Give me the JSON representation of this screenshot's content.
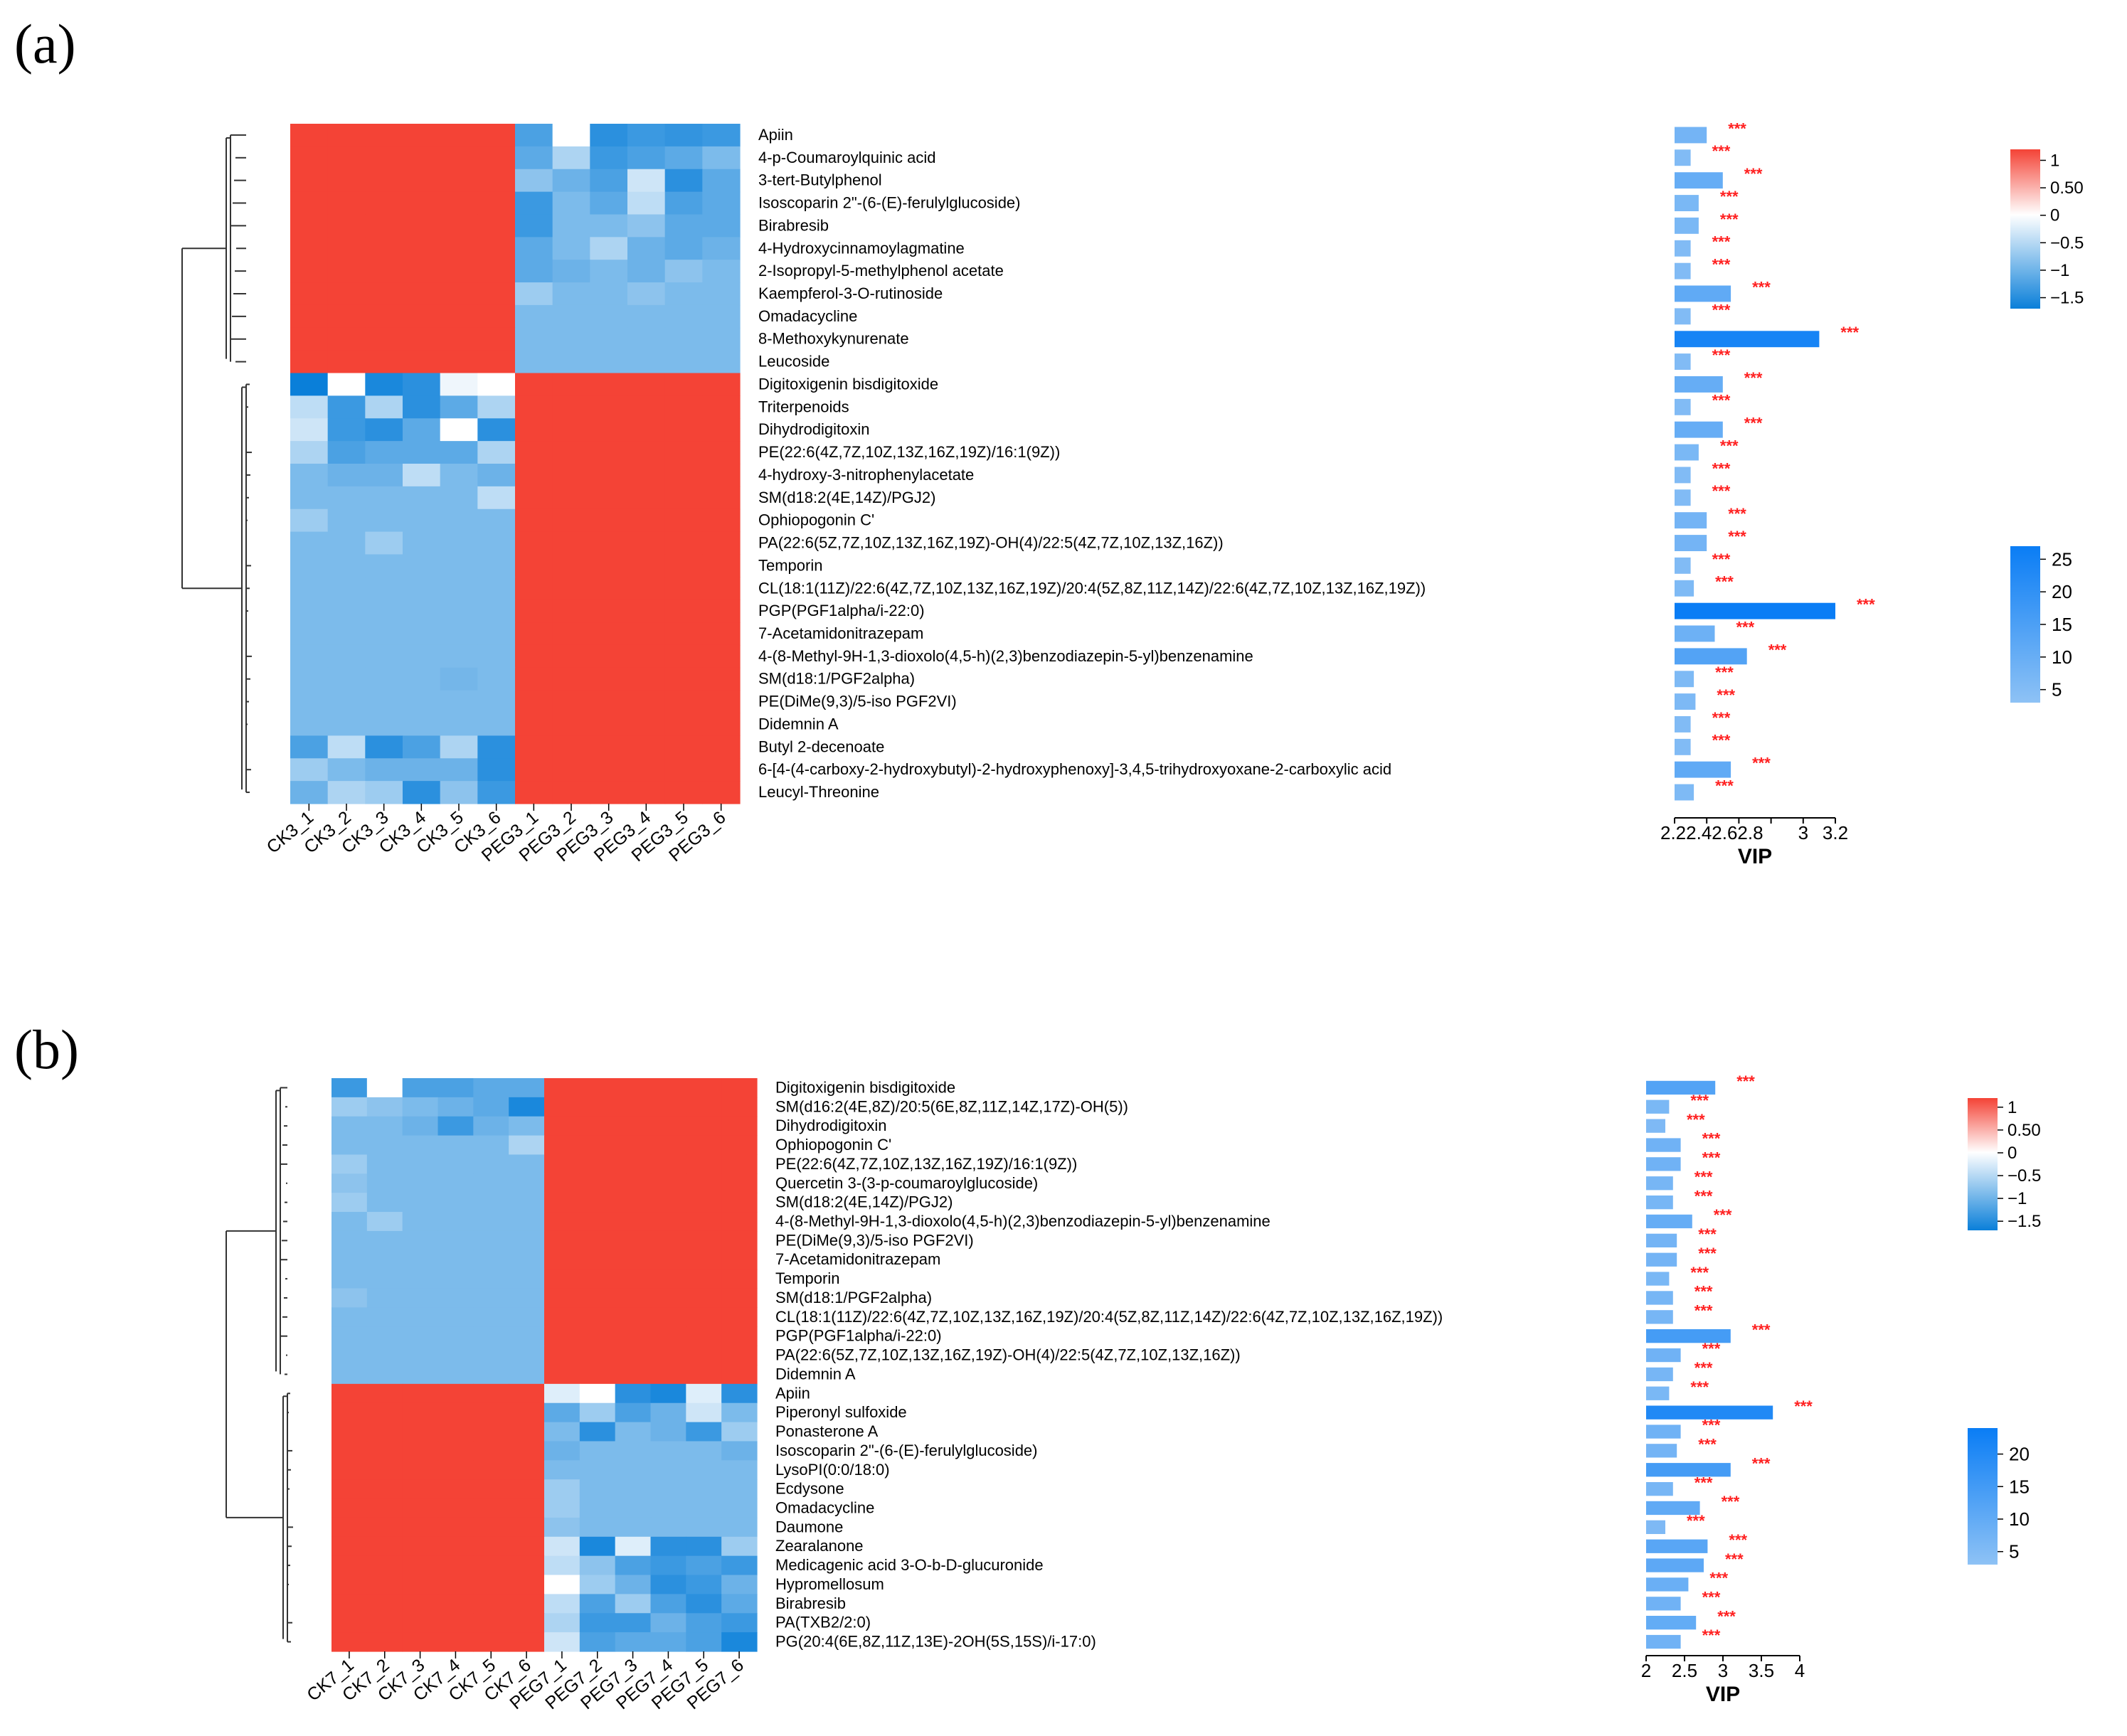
{
  "colors": {
    "heat_high": "#f44336",
    "heat_mid": "#ffffff",
    "heat_low": "#0a7fd9",
    "vip_high": "#0a7df5",
    "vip_low": "#8ec2f5",
    "significance": "#ff2020"
  },
  "chart_data": [
    {
      "type": "heatmap",
      "panel_label": "(a)",
      "samples": [
        "CK3_1",
        "CK3_2",
        "CK3_3",
        "CK3_4",
        "CK3_5",
        "CK3_6",
        "PEG3_1",
        "PEG3_2",
        "PEG3_3",
        "PEG3_4",
        "PEG3_5",
        "PEG3_6"
      ],
      "metabolites": [
        "Apiin",
        "4-p-Coumaroylquinic acid",
        "3-tert-Butylphenol",
        "Isoscoparin 2\"-(6-(E)-ferulylglucoside)",
        "Birabresib",
        "4-Hydroxycinnamoylagmatine",
        "2-Isopropyl-5-methylphenol acetate",
        "Kaempferol-3-O-rutinoside",
        "Omadacycline",
        "8-Methoxykynurenate",
        "Leucoside",
        "Digitoxigenin bisdigitoxide",
        "Triterpenoids",
        "Dihydrodigitoxin",
        "PE(22:6(4Z,7Z,10Z,13Z,16Z,19Z)/16:1(9Z))",
        "4-hydroxy-3-nitrophenylacetate",
        "SM(d18:2(4E,14Z)/PGJ2)",
        "Ophiopogonin C'",
        "PA(22:6(5Z,7Z,10Z,13Z,16Z,19Z)-OH(4)/22:5(4Z,7Z,10Z,13Z,16Z))",
        "Temporin",
        "CL(18:1(11Z)/22:6(4Z,7Z,10Z,13Z,16Z,19Z)/20:4(5Z,8Z,11Z,14Z)/22:6(4Z,7Z,10Z,13Z,16Z,19Z))",
        "PGP(PGF1alpha/i-22:0)",
        "7-Acetamidonitrazepam",
        "4-(8-Methyl-9H-1,3-dioxolo(4,5-h)(2,3)benzodiazepin-5-yl)benzenamine",
        "SM(d18:1/PGF2alpha)",
        "PE(DiMe(9,3)/5-iso PGF2VI)",
        "Didemnin A",
        "Butyl 2-decenoate",
        "6-[4-(4-carboxy-2-hydroxybutyl)-2-hydroxyphenoxy]-3,4,5-trihydroxyoxane-2-carboxylic acid",
        "Leucyl-Threonine"
      ],
      "values": [
        [
          0.95,
          0.9,
          0.9,
          0.85,
          0.9,
          0.88,
          -1.1,
          0.0,
          -1.3,
          -1.2,
          -1.25,
          -1.2
        ],
        [
          0.9,
          0.88,
          0.9,
          0.88,
          0.9,
          0.88,
          -1.0,
          -0.5,
          -1.2,
          -1.1,
          -1.0,
          -0.8
        ],
        [
          0.92,
          0.9,
          0.9,
          0.88,
          0.9,
          0.9,
          -0.7,
          -0.9,
          -1.1,
          -0.3,
          -1.3,
          -1.0
        ],
        [
          0.9,
          0.9,
          0.9,
          0.9,
          0.9,
          0.9,
          -1.2,
          -0.8,
          -1.0,
          -0.4,
          -1.1,
          -1.0
        ],
        [
          0.9,
          0.9,
          0.9,
          0.9,
          0.9,
          0.9,
          -1.2,
          -0.8,
          -0.8,
          -0.7,
          -1.0,
          -1.0
        ],
        [
          0.9,
          0.9,
          0.9,
          0.9,
          0.9,
          0.9,
          -1.0,
          -0.8,
          -0.5,
          -0.9,
          -1.0,
          -0.9
        ],
        [
          0.9,
          0.9,
          0.9,
          0.9,
          0.9,
          0.9,
          -1.0,
          -0.9,
          -0.8,
          -0.9,
          -0.7,
          -0.8
        ],
        [
          0.9,
          0.9,
          0.9,
          0.9,
          0.9,
          0.9,
          -0.6,
          -0.8,
          -0.8,
          -0.7,
          -0.8,
          -0.8
        ],
        [
          0.9,
          0.9,
          0.9,
          0.9,
          0.9,
          0.9,
          -0.8,
          -0.8,
          -0.8,
          -0.8,
          -0.8,
          -0.8
        ],
        [
          0.9,
          0.9,
          0.9,
          0.9,
          0.9,
          0.9,
          -0.8,
          -0.8,
          -0.8,
          -0.8,
          -0.8,
          -0.8
        ],
        [
          0.9,
          0.9,
          0.9,
          0.9,
          0.9,
          0.9,
          -0.8,
          -0.8,
          -0.8,
          -0.8,
          -0.8,
          -0.8
        ],
        [
          -1.5,
          0.0,
          -1.4,
          -1.3,
          -0.1,
          0.0,
          0.9,
          0.9,
          0.9,
          0.9,
          0.9,
          0.9
        ],
        [
          -0.4,
          -1.2,
          -0.5,
          -1.3,
          -1.0,
          -0.5,
          0.9,
          0.9,
          0.95,
          0.9,
          0.95,
          0.9
        ],
        [
          -0.3,
          -1.2,
          -1.3,
          -1.0,
          0.0,
          -1.3,
          0.9,
          0.9,
          0.9,
          0.9,
          0.9,
          0.9
        ],
        [
          -0.5,
          -1.1,
          -1.0,
          -1.0,
          -1.0,
          -0.5,
          0.9,
          0.9,
          0.9,
          0.9,
          0.95,
          0.9
        ],
        [
          -0.8,
          -0.9,
          -0.9,
          -0.4,
          -0.8,
          -0.9,
          0.9,
          0.9,
          0.9,
          0.9,
          0.95,
          0.9
        ],
        [
          -0.8,
          -0.8,
          -0.8,
          -0.8,
          -0.8,
          -0.4,
          0.9,
          0.9,
          0.9,
          0.9,
          0.9,
          0.9
        ],
        [
          -0.6,
          -0.8,
          -0.8,
          -0.8,
          -0.8,
          -0.8,
          0.9,
          0.9,
          0.9,
          0.9,
          0.9,
          0.9
        ],
        [
          -0.8,
          -0.8,
          -0.6,
          -0.8,
          -0.8,
          -0.8,
          0.9,
          0.9,
          0.9,
          0.9,
          0.9,
          0.9
        ],
        [
          -0.8,
          -0.8,
          -0.8,
          -0.8,
          -0.8,
          -0.8,
          0.9,
          0.9,
          0.9,
          0.9,
          0.9,
          0.9
        ],
        [
          -0.8,
          -0.8,
          -0.8,
          -0.8,
          -0.8,
          -0.8,
          0.9,
          0.9,
          0.9,
          0.9,
          0.9,
          0.9
        ],
        [
          -0.8,
          -0.8,
          -0.8,
          -0.8,
          -0.8,
          -0.8,
          0.9,
          0.9,
          0.9,
          0.9,
          0.9,
          0.9
        ],
        [
          -0.8,
          -0.8,
          -0.8,
          -0.8,
          -0.8,
          -0.8,
          0.9,
          0.9,
          0.9,
          0.9,
          0.9,
          0.9
        ],
        [
          -0.8,
          -0.8,
          -0.8,
          -0.8,
          -0.8,
          -0.8,
          0.9,
          0.9,
          0.9,
          0.9,
          0.9,
          0.9
        ],
        [
          -0.8,
          -0.8,
          -0.8,
          -0.8,
          -0.85,
          -0.8,
          0.9,
          0.9,
          0.9,
          0.9,
          0.9,
          0.9
        ],
        [
          -0.8,
          -0.8,
          -0.8,
          -0.8,
          -0.8,
          -0.8,
          0.9,
          0.9,
          0.9,
          0.9,
          0.9,
          0.9
        ],
        [
          -0.8,
          -0.8,
          -0.8,
          -0.8,
          -0.8,
          -0.8,
          0.9,
          0.9,
          0.9,
          0.9,
          0.9,
          0.9
        ],
        [
          -1.1,
          -0.4,
          -1.3,
          -1.1,
          -0.5,
          -1.3,
          0.9,
          0.9,
          0.9,
          0.9,
          0.9,
          0.9
        ],
        [
          -0.6,
          -0.8,
          -0.9,
          -0.9,
          -0.9,
          -1.3,
          0.9,
          0.9,
          0.9,
          0.9,
          0.9,
          0.9
        ],
        [
          -0.9,
          -0.5,
          -0.6,
          -1.3,
          -0.7,
          -1.2,
          0.9,
          0.9,
          0.9,
          0.9,
          0.9,
          0.9
        ]
      ],
      "vip": [
        2.4,
        2.3,
        2.5,
        2.35,
        2.35,
        2.3,
        2.3,
        2.55,
        2.3,
        3.1,
        2.3,
        2.5,
        2.3,
        2.5,
        2.35,
        2.3,
        2.3,
        2.4,
        2.4,
        2.3,
        2.32,
        3.2,
        2.45,
        2.65,
        2.32,
        2.33,
        2.3,
        2.3,
        2.55,
        2.32
      ],
      "significance": [
        "***",
        "***",
        "***",
        "***",
        "***",
        "***",
        "***",
        "***",
        "***",
        "***",
        "***",
        "***",
        "***",
        "***",
        "***",
        "***",
        "***",
        "***",
        "***",
        "***",
        "***",
        "***",
        "***",
        "***",
        "***",
        "***",
        "***",
        "***",
        "***",
        "***"
      ],
      "vip_axis": {
        "label": "VIP",
        "min": 2.2,
        "max": 3.2,
        "ticks": [
          "2.2",
          "2.4",
          "2.6",
          "2.8",
          "3",
          "3.2"
        ],
        "tick_text": "2.22.42.62.8"
      },
      "heat_colorbar": {
        "ticks": [
          "1",
          "0.50",
          "0",
          "−0.5",
          "−1",
          "−1.5"
        ],
        "values": [
          1,
          0.5,
          0,
          -0.5,
          -1,
          -1.5
        ],
        "min": -1.7,
        "max": 1.2
      },
      "vip_colorbar": {
        "ticks": [
          "25",
          "20",
          "15",
          "10",
          "5"
        ],
        "values": [
          25,
          20,
          15,
          10,
          5
        ],
        "min": 3,
        "max": 27
      }
    },
    {
      "type": "heatmap",
      "panel_label": "(b)",
      "samples": [
        "CK7_1",
        "CK7_2",
        "CK7_3",
        "CK7_4",
        "CK7_5",
        "CK7_6",
        "PEG7_1",
        "PEG7_2",
        "PEG7_3",
        "PEG7_4",
        "PEG7_5",
        "PEG7_6"
      ],
      "metabolites": [
        "Digitoxigenin bisdigitoxide",
        "SM(d16:2(4E,8Z)/20:5(6E,8Z,11Z,14Z,17Z)-OH(5))",
        "Dihydrodigitoxin",
        "Ophiopogonin C'",
        "PE(22:6(4Z,7Z,10Z,13Z,16Z,19Z)/16:1(9Z))",
        "Quercetin 3-(3-p-coumaroylglucoside)",
        "SM(d18:2(4E,14Z)/PGJ2)",
        "4-(8-Methyl-9H-1,3-dioxolo(4,5-h)(2,3)benzodiazepin-5-yl)benzenamine",
        "PE(DiMe(9,3)/5-iso PGF2VI)",
        "7-Acetamidonitrazepam",
        "Temporin",
        "SM(d18:1/PGF2alpha)",
        "CL(18:1(11Z)/22:6(4Z,7Z,10Z,13Z,16Z,19Z)/20:4(5Z,8Z,11Z,14Z)/22:6(4Z,7Z,10Z,13Z,16Z,19Z))",
        "PGP(PGF1alpha/i-22:0)",
        "PA(22:6(5Z,7Z,10Z,13Z,16Z,19Z)-OH(4)/22:5(4Z,7Z,10Z,13Z,16Z))",
        "Didemnin A",
        "Apiin",
        "Piperonyl sulfoxide",
        "Ponasterone A",
        "Isoscoparin 2\"-(6-(E)-ferulylglucoside)",
        "LysoPI(0:0/18:0)",
        "Ecdysone",
        "Omadacycline",
        "Daumone",
        "Zearalanone",
        "Medicagenic acid 3-O-b-D-glucuronide",
        "Hypromellosum",
        "Birabresib",
        "PA(TXB2/2:0)",
        "PG(20:4(6E,8Z,11Z,13E)-2OH(5S,15S)/i-17:0)"
      ],
      "values": [
        [
          -1.2,
          0.0,
          -1.1,
          -1.1,
          -1.0,
          -1.0,
          0.9,
          0.9,
          0.9,
          0.9,
          0.9,
          0.9
        ],
        [
          -0.6,
          -0.7,
          -0.8,
          -0.9,
          -1.0,
          -1.4,
          0.9,
          0.9,
          0.9,
          0.9,
          0.9,
          0.9
        ],
        [
          -0.8,
          -0.8,
          -0.9,
          -1.2,
          -0.9,
          -0.8,
          0.9,
          0.9,
          0.9,
          0.9,
          0.9,
          0.9
        ],
        [
          -0.8,
          -0.8,
          -0.8,
          -0.8,
          -0.8,
          -0.5,
          0.9,
          0.9,
          0.9,
          0.9,
          0.9,
          0.9
        ],
        [
          -0.6,
          -0.8,
          -0.8,
          -0.8,
          -0.8,
          -0.8,
          0.9,
          0.9,
          0.9,
          0.9,
          0.95,
          0.9
        ],
        [
          -0.7,
          -0.8,
          -0.8,
          -0.8,
          -0.8,
          -0.8,
          0.95,
          0.9,
          0.9,
          0.9,
          1.0,
          0.9
        ],
        [
          -0.6,
          -0.8,
          -0.8,
          -0.8,
          -0.8,
          -0.8,
          0.9,
          0.9,
          0.9,
          0.9,
          0.9,
          0.9
        ],
        [
          -0.8,
          -0.6,
          -0.8,
          -0.8,
          -0.8,
          -0.8,
          0.9,
          0.9,
          0.9,
          0.9,
          0.9,
          0.9
        ],
        [
          -0.8,
          -0.8,
          -0.8,
          -0.8,
          -0.8,
          -0.8,
          0.9,
          0.9,
          0.95,
          0.9,
          0.9,
          0.9
        ],
        [
          -0.8,
          -0.8,
          -0.8,
          -0.8,
          -0.8,
          -0.8,
          0.9,
          0.9,
          0.9,
          0.9,
          0.9,
          0.9
        ],
        [
          -0.8,
          -0.8,
          -0.8,
          -0.8,
          -0.8,
          -0.8,
          0.9,
          0.9,
          0.9,
          0.9,
          0.9,
          0.9
        ],
        [
          -0.7,
          -0.8,
          -0.8,
          -0.8,
          -0.8,
          -0.8,
          0.9,
          0.9,
          0.9,
          0.9,
          0.9,
          0.9
        ],
        [
          -0.8,
          -0.8,
          -0.8,
          -0.8,
          -0.8,
          -0.8,
          0.9,
          0.9,
          0.9,
          0.9,
          0.9,
          0.9
        ],
        [
          -0.8,
          -0.8,
          -0.8,
          -0.8,
          -0.8,
          -0.8,
          0.9,
          0.9,
          0.9,
          0.9,
          0.9,
          0.9
        ],
        [
          -0.8,
          -0.8,
          -0.8,
          -0.8,
          -0.8,
          -0.8,
          0.9,
          0.9,
          0.9,
          0.9,
          0.9,
          0.9
        ],
        [
          -0.8,
          -0.8,
          -0.8,
          -0.8,
          -0.8,
          -0.8,
          0.9,
          0.9,
          0.9,
          0.9,
          0.9,
          0.9
        ],
        [
          0.9,
          0.9,
          0.9,
          0.85,
          0.9,
          0.9,
          -0.2,
          0.0,
          -1.3,
          -1.4,
          -0.2,
          -1.3
        ],
        [
          0.92,
          0.92,
          0.92,
          0.92,
          0.92,
          0.92,
          -1.0,
          -0.6,
          -1.1,
          -0.9,
          -0.3,
          -0.8
        ],
        [
          0.9,
          0.92,
          0.92,
          0.9,
          0.9,
          0.9,
          -0.8,
          -1.3,
          -0.8,
          -0.9,
          -1.2,
          -0.6
        ],
        [
          0.95,
          0.9,
          0.9,
          0.9,
          0.9,
          0.92,
          -0.9,
          -0.8,
          -0.8,
          -0.8,
          -0.8,
          -0.9
        ],
        [
          0.9,
          0.9,
          0.9,
          0.9,
          0.9,
          0.9,
          -0.8,
          -0.8,
          -0.8,
          -0.8,
          -0.8,
          -0.8
        ],
        [
          0.9,
          0.9,
          0.9,
          0.9,
          0.9,
          0.9,
          -0.6,
          -0.8,
          -0.8,
          -0.8,
          -0.8,
          -0.8
        ],
        [
          0.9,
          0.9,
          0.9,
          0.9,
          0.9,
          0.9,
          -0.6,
          -0.8,
          -0.8,
          -0.8,
          -0.8,
          -0.8
        ],
        [
          0.9,
          0.9,
          0.9,
          0.9,
          0.9,
          0.9,
          -0.7,
          -0.8,
          -0.8,
          -0.8,
          -0.8,
          -0.8
        ],
        [
          0.9,
          0.9,
          0.9,
          0.9,
          0.9,
          0.9,
          -0.3,
          -1.4,
          -0.2,
          -1.3,
          -1.3,
          -0.6
        ],
        [
          0.9,
          0.9,
          0.9,
          0.9,
          0.9,
          0.9,
          -0.4,
          -0.7,
          -1.1,
          -1.2,
          -1.1,
          -1.2
        ],
        [
          0.9,
          0.9,
          0.9,
          0.9,
          0.9,
          0.9,
          0.0,
          -0.6,
          -0.9,
          -1.3,
          -1.2,
          -0.9
        ],
        [
          0.9,
          0.9,
          0.9,
          0.9,
          0.9,
          0.9,
          -0.4,
          -1.1,
          -0.6,
          -1.1,
          -1.3,
          -1.0
        ],
        [
          0.9,
          0.9,
          0.9,
          0.9,
          0.9,
          0.9,
          -0.5,
          -1.2,
          -1.2,
          -0.9,
          -1.1,
          -1.2
        ],
        [
          0.9,
          0.9,
          0.9,
          0.9,
          0.9,
          0.9,
          -0.3,
          -1.1,
          -1.0,
          -1.0,
          -1.1,
          -1.4
        ]
      ],
      "vip": [
        2.9,
        2.3,
        2.25,
        2.45,
        2.45,
        2.35,
        2.35,
        2.6,
        2.4,
        2.4,
        2.3,
        2.35,
        2.35,
        3.1,
        2.45,
        2.35,
        2.3,
        3.65,
        2.45,
        2.4,
        3.1,
        2.35,
        2.7,
        2.25,
        2.8,
        2.75,
        2.55,
        2.45,
        2.65,
        2.45
      ],
      "significance": [
        "***",
        "***",
        "***",
        "***",
        "***",
        "***",
        "***",
        "***",
        "***",
        "***",
        "***",
        "***",
        "***",
        "***",
        "***",
        "***",
        "***",
        "***",
        "***",
        "***",
        "***",
        "***",
        "***",
        "***",
        "***",
        "***",
        "***",
        "***",
        "***",
        "***"
      ],
      "vip_axis": {
        "label": "VIP",
        "min": 2,
        "max": 4,
        "ticks": [
          "2",
          "2.5",
          "3",
          "3.5",
          "4"
        ]
      },
      "heat_colorbar": {
        "ticks": [
          "1",
          "0.50",
          "0",
          "−0.5",
          "−1",
          "−1.5"
        ],
        "values": [
          1,
          0.5,
          0,
          -0.5,
          -1,
          -1.5
        ],
        "min": -1.7,
        "max": 1.2
      },
      "vip_colorbar": {
        "ticks": [
          "20",
          "15",
          "10",
          "5"
        ],
        "values": [
          20,
          15,
          10,
          5
        ],
        "min": 3,
        "max": 24
      }
    }
  ]
}
